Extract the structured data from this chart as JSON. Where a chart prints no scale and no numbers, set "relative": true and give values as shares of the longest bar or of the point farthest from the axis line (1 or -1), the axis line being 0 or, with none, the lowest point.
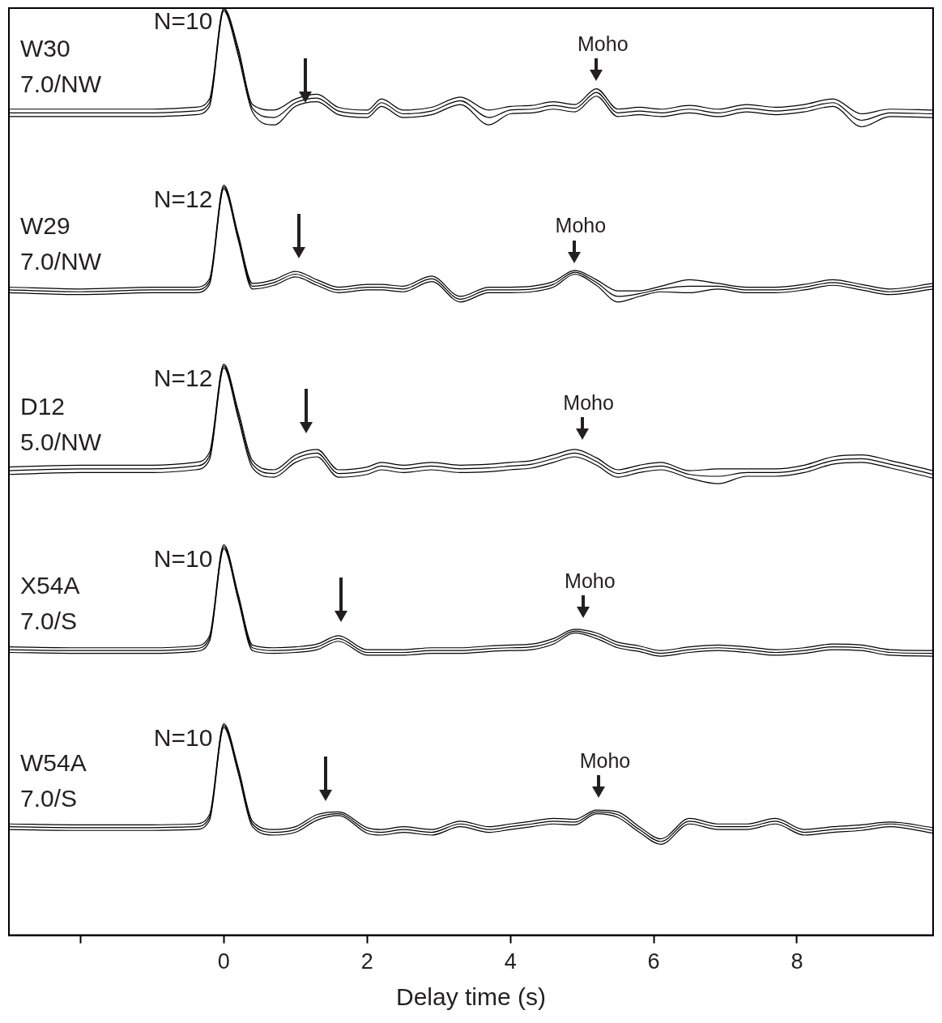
{
  "chart_data": {
    "type": "line",
    "relative": true,
    "xlabel": "Delay time (s)",
    "xlim": [
      -3,
      9.9
    ],
    "xticks": [
      {
        "value": -2,
        "label": null
      },
      0,
      2,
      4,
      6,
      8
    ],
    "grid": false,
    "legend": false,
    "marker": "none",
    "line_style": "solid",
    "x": [
      -3,
      -2,
      -1,
      -0.4,
      -0.2,
      0,
      0.2,
      0.4,
      0.7,
      1.0,
      1.3,
      1.6,
      2.0,
      2.2,
      2.5,
      2.9,
      3.3,
      3.7,
      4.0,
      4.3,
      4.6,
      4.9,
      5.2,
      5.5,
      5.8,
      6.1,
      6.5,
      6.9,
      7.3,
      7.7,
      8.1,
      8.5,
      8.9,
      9.3,
      9.9
    ],
    "series": [
      {
        "name": "W30 7.0/NW",
        "color": "#000000",
        "values": [
          0.887,
          0.887,
          0.887,
          0.889,
          0.898,
          0.999,
          0.953,
          0.892,
          0.882,
          0.898,
          0.903,
          0.889,
          0.886,
          0.898,
          0.886,
          0.889,
          0.9,
          0.882,
          0.89,
          0.891,
          0.895,
          0.892,
          0.909,
          0.887,
          0.889,
          0.887,
          0.891,
          0.887,
          0.892,
          0.889,
          0.892,
          0.898,
          0.879,
          0.887,
          0.886
        ]
      },
      {
        "color": "#000000",
        "values": [
          0.883,
          0.883,
          0.883,
          0.885,
          0.894,
          0.997,
          0.949,
          0.888,
          0.874,
          0.894,
          0.899,
          0.885,
          0.882,
          0.894,
          0.882,
          0.885,
          0.896,
          0.874,
          0.886,
          0.887,
          0.891,
          0.888,
          0.905,
          0.883,
          0.885,
          0.883,
          0.887,
          0.883,
          0.888,
          0.885,
          0.888,
          0.894,
          0.872,
          0.883,
          0.882
        ]
      },
      {
        "color": "#000000",
        "values": [
          0.891,
          0.891,
          0.891,
          0.893,
          0.902,
          1.0,
          0.957,
          0.896,
          0.89,
          0.902,
          0.907,
          0.893,
          0.89,
          0.902,
          0.89,
          0.893,
          0.904,
          0.89,
          0.894,
          0.895,
          0.899,
          0.896,
          0.913,
          0.891,
          0.893,
          0.891,
          0.895,
          0.891,
          0.896,
          0.893,
          0.896,
          0.902,
          0.886,
          0.891,
          0.89
        ]
      },
      {
        "name": "W29 7.0/NW",
        "color": "#000000",
        "values": [
          0.696,
          0.694,
          0.696,
          0.696,
          0.705,
          0.807,
          0.753,
          0.7,
          0.704,
          0.713,
          0.704,
          0.696,
          0.699,
          0.699,
          0.697,
          0.708,
          0.686,
          0.696,
          0.696,
          0.697,
          0.702,
          0.715,
          0.704,
          0.689,
          0.692,
          0.697,
          0.7,
          0.7,
          0.696,
          0.696,
          0.699,
          0.704,
          0.699,
          0.694,
          0.7
        ]
      },
      {
        "color": "#000000",
        "values": [
          0.693,
          0.691,
          0.693,
          0.693,
          0.702,
          0.805,
          0.75,
          0.697,
          0.701,
          0.71,
          0.701,
          0.693,
          0.696,
          0.696,
          0.694,
          0.705,
          0.683,
          0.693,
          0.693,
          0.694,
          0.699,
          0.713,
          0.701,
          0.683,
          0.689,
          0.694,
          0.693,
          0.697,
          0.693,
          0.693,
          0.696,
          0.701,
          0.696,
          0.691,
          0.697
        ]
      },
      {
        "color": "#000000",
        "values": [
          0.699,
          0.697,
          0.699,
          0.699,
          0.708,
          0.809,
          0.756,
          0.703,
          0.707,
          0.716,
          0.707,
          0.699,
          0.702,
          0.702,
          0.7,
          0.711,
          0.689,
          0.699,
          0.699,
          0.7,
          0.705,
          0.717,
          0.707,
          0.695,
          0.695,
          0.7,
          0.707,
          0.703,
          0.699,
          0.699,
          0.702,
          0.707,
          0.702,
          0.697,
          0.703
        ]
      },
      {
        "name": "D12 5.0/NW",
        "color": "#000000",
        "values": [
          0.501,
          0.503,
          0.503,
          0.506,
          0.517,
          0.614,
          0.562,
          0.508,
          0.498,
          0.514,
          0.52,
          0.498,
          0.501,
          0.506,
          0.503,
          0.506,
          0.503,
          0.504,
          0.506,
          0.508,
          0.514,
          0.52,
          0.511,
          0.498,
          0.503,
          0.506,
          0.497,
          0.495,
          0.499,
          0.499,
          0.503,
          0.512,
          0.514,
          0.508,
          0.497
        ]
      },
      {
        "color": "#000000",
        "values": [
          0.497,
          0.499,
          0.499,
          0.502,
          0.513,
          0.612,
          0.558,
          0.504,
          0.494,
          0.51,
          0.516,
          0.494,
          0.497,
          0.502,
          0.499,
          0.502,
          0.499,
          0.5,
          0.502,
          0.504,
          0.51,
          0.516,
          0.507,
          0.494,
          0.499,
          0.502,
          0.493,
          0.487,
          0.495,
          0.495,
          0.499,
          0.508,
          0.51,
          0.504,
          0.493
        ]
      },
      {
        "color": "#000000",
        "values": [
          0.505,
          0.507,
          0.507,
          0.51,
          0.521,
          0.616,
          0.566,
          0.512,
          0.502,
          0.518,
          0.524,
          0.502,
          0.505,
          0.51,
          0.507,
          0.51,
          0.507,
          0.508,
          0.51,
          0.512,
          0.518,
          0.524,
          0.515,
          0.502,
          0.507,
          0.51,
          0.501,
          0.503,
          0.503,
          0.503,
          0.507,
          0.516,
          0.518,
          0.512,
          0.501
        ]
      },
      {
        "name": "X54A 7.0/S",
        "color": "#000000",
        "values": [
          0.308,
          0.307,
          0.307,
          0.309,
          0.32,
          0.419,
          0.365,
          0.31,
          0.307,
          0.308,
          0.311,
          0.32,
          0.305,
          0.305,
          0.305,
          0.307,
          0.307,
          0.309,
          0.31,
          0.311,
          0.317,
          0.328,
          0.323,
          0.313,
          0.309,
          0.304,
          0.308,
          0.31,
          0.308,
          0.305,
          0.307,
          0.311,
          0.31,
          0.305,
          0.304
        ]
      },
      {
        "color": "#000000",
        "values": [
          0.305,
          0.304,
          0.304,
          0.306,
          0.317,
          0.417,
          0.362,
          0.307,
          0.304,
          0.305,
          0.308,
          0.317,
          0.302,
          0.302,
          0.302,
          0.304,
          0.304,
          0.306,
          0.307,
          0.308,
          0.314,
          0.326,
          0.32,
          0.31,
          0.306,
          0.301,
          0.305,
          0.307,
          0.305,
          0.302,
          0.304,
          0.308,
          0.307,
          0.302,
          0.301
        ]
      },
      {
        "color": "#000000",
        "values": [
          0.311,
          0.31,
          0.31,
          0.312,
          0.323,
          0.421,
          0.368,
          0.313,
          0.31,
          0.311,
          0.314,
          0.323,
          0.308,
          0.308,
          0.308,
          0.31,
          0.31,
          0.312,
          0.313,
          0.314,
          0.32,
          0.33,
          0.326,
          0.316,
          0.312,
          0.307,
          0.311,
          0.313,
          0.311,
          0.308,
          0.31,
          0.314,
          0.313,
          0.308,
          0.307
        ]
      },
      {
        "name": "W54A 7.0/S",
        "color": "#000000",
        "values": [
          0.117,
          0.116,
          0.116,
          0.117,
          0.127,
          0.226,
          0.178,
          0.12,
          0.111,
          0.114,
          0.127,
          0.131,
          0.113,
          0.111,
          0.114,
          0.111,
          0.12,
          0.114,
          0.117,
          0.12,
          0.123,
          0.122,
          0.133,
          0.13,
          0.114,
          0.101,
          0.123,
          0.117,
          0.117,
          0.123,
          0.111,
          0.114,
          0.116,
          0.12,
          0.113
        ]
      },
      {
        "color": "#000000",
        "values": [
          0.114,
          0.113,
          0.113,
          0.114,
          0.124,
          0.224,
          0.175,
          0.117,
          0.108,
          0.111,
          0.124,
          0.129,
          0.11,
          0.108,
          0.111,
          0.108,
          0.117,
          0.111,
          0.114,
          0.117,
          0.12,
          0.119,
          0.131,
          0.127,
          0.111,
          0.098,
          0.12,
          0.114,
          0.114,
          0.12,
          0.108,
          0.111,
          0.113,
          0.117,
          0.11
        ]
      },
      {
        "color": "#000000",
        "values": [
          0.12,
          0.119,
          0.119,
          0.12,
          0.13,
          0.228,
          0.181,
          0.123,
          0.114,
          0.117,
          0.13,
          0.133,
          0.116,
          0.114,
          0.117,
          0.114,
          0.123,
          0.117,
          0.12,
          0.123,
          0.126,
          0.125,
          0.135,
          0.133,
          0.117,
          0.104,
          0.126,
          0.12,
          0.12,
          0.126,
          0.114,
          0.117,
          0.119,
          0.122,
          0.116
        ]
      }
    ],
    "annotations": [
      "N=10",
      "N=12",
      "N=12",
      "N=10",
      "N=10",
      "Moho",
      "Moho",
      "Moho",
      "Moho",
      "Moho"
    ]
  }
}
